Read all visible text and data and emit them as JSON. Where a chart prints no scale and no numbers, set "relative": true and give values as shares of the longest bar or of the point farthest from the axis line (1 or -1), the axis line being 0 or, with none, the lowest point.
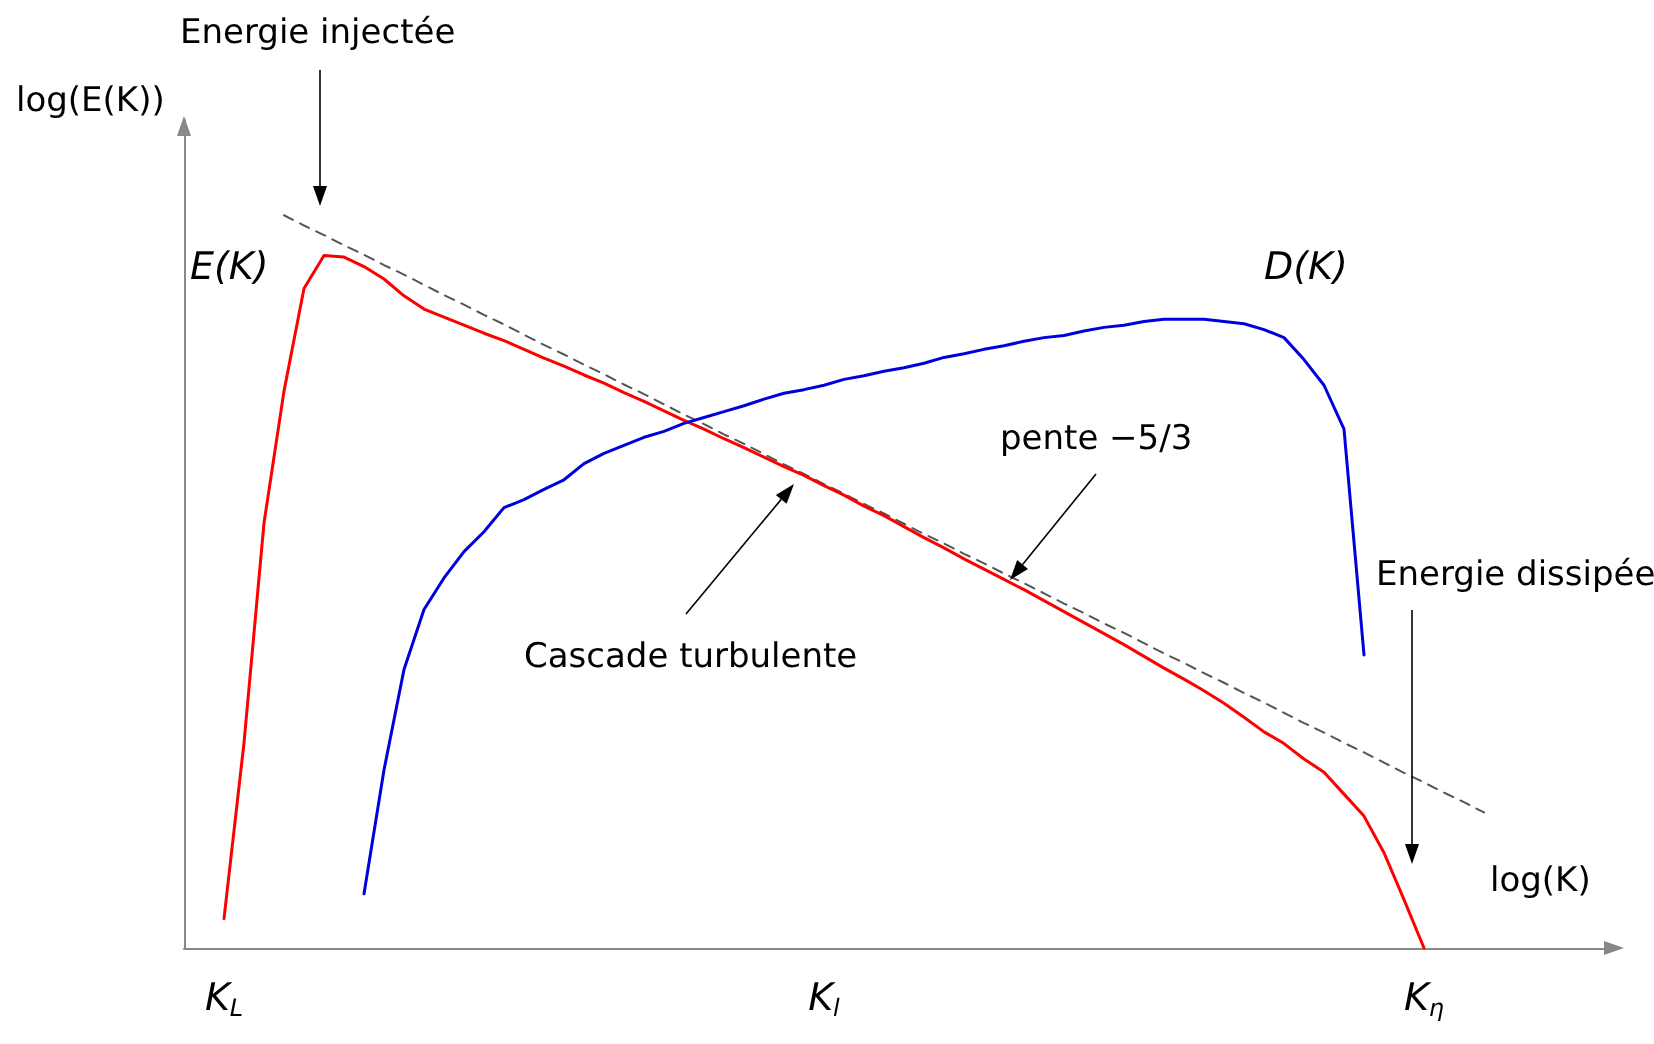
{
  "chart_data": {
    "type": "line",
    "relative": true,
    "xlabel": "log(K)",
    "ylabel": "log(E(K))",
    "categories": [
      null,
      null,
      "K$_{L}$",
      null,
      null,
      null,
      null,
      null,
      null,
      null,
      null,
      null,
      null,
      null,
      null,
      null,
      null,
      null,
      null,
      null,
      null,
      null,
      null,
      null,
      null,
      null,
      null,
      null,
      null,
      null,
      null,
      null,
      "K$_{l}$",
      null,
      null,
      null,
      null,
      null,
      null,
      null,
      null,
      null,
      null,
      null,
      null,
      null,
      null,
      null,
      null,
      null,
      null,
      null,
      null,
      null,
      null,
      null,
      null,
      null,
      null,
      null,
      null,
      null,
      "K$_{η}$",
      null,
      null,
      null,
      null,
      null,
      null,
      null,
      null,
      null
    ],
    "series": [
      {
        "name": "E(K)",
        "color": "#ff0000",
        "values": [
          null,
          null,
          0.04,
          0.28,
          0.58,
          0.76,
          0.9,
          0.945,
          0.943,
          0.93,
          0.913,
          0.89,
          0.872,
          0.861,
          0.85,
          0.839,
          0.829,
          0.817,
          0.805,
          0.794,
          0.782,
          0.771,
          0.758,
          0.746,
          0.733,
          0.72,
          0.708,
          0.695,
          0.683,
          0.67,
          0.657,
          0.645,
          0.631,
          0.618,
          0.603,
          0.59,
          0.575,
          0.56,
          0.546,
          0.531,
          0.517,
          0.503,
          0.489,
          0.474,
          0.459,
          0.444,
          0.429,
          0.414,
          0.398,
          0.382,
          0.367,
          0.351,
          0.334,
          0.315,
          0.295,
          0.279,
          0.258,
          0.24,
          0.21,
          0.18,
          0.13,
          0.066,
          0,
          null,
          null,
          null,
          null,
          null,
          null,
          null,
          null,
          null
        ]
      },
      {
        "name": "D(K)",
        "color": "#0000dd",
        "values": [
          null,
          null,
          null,
          null,
          null,
          null,
          null,
          null,
          null,
          0.074,
          0.243,
          0.38,
          0.462,
          0.505,
          0.541,
          0.568,
          0.601,
          0.612,
          0.626,
          0.639,
          0.661,
          0.675,
          0.686,
          0.697,
          0.705,
          0.716,
          0.724,
          0.732,
          0.74,
          0.749,
          0.757,
          0.762,
          0.768,
          0.776,
          0.781,
          0.787,
          0.792,
          0.798,
          0.806,
          0.811,
          0.817,
          0.822,
          0.828,
          0.833,
          0.836,
          0.842,
          0.847,
          0.85,
          0.855,
          0.858,
          0.858,
          0.858,
          0.855,
          0.852,
          0.844,
          0.833,
          0.803,
          0.768,
          0.708,
          0.4,
          null,
          null,
          null,
          null,
          null,
          null,
          null,
          null,
          null,
          null,
          null,
          null
        ]
      },
      {
        "color": "#555555",
        "line_style": "dashed",
        "values": [
          null,
          null,
          null,
          null,
          null,
          1,
          0.986,
          0.973,
          0.959,
          0.946,
          0.932,
          0.919,
          0.905,
          0.891,
          0.878,
          0.864,
          0.851,
          0.837,
          0.823,
          0.81,
          0.796,
          0.783,
          0.769,
          0.756,
          0.742,
          0.728,
          0.715,
          0.701,
          0.688,
          0.674,
          0.66,
          0.647,
          0.633,
          0.62,
          0.606,
          0.593,
          0.579,
          0.565,
          0.552,
          0.538,
          0.525,
          0.511,
          0.498,
          0.484,
          0.47,
          0.457,
          0.443,
          0.43,
          0.416,
          0.402,
          0.389,
          0.375,
          0.362,
          0.348,
          0.335,
          0.321,
          0.307,
          0.294,
          0.28,
          0.267,
          0.253,
          0.239,
          0.226,
          0.212,
          0.199,
          0.185,
          null,
          null,
          null,
          null,
          null,
          null
        ]
      }
    ],
    "annotations": [
      "Energie injectée",
      "Cascade turbulente",
      "pente −5/3",
      "Energie dissipée"
    ],
    "grid": false,
    "marker": "none"
  }
}
